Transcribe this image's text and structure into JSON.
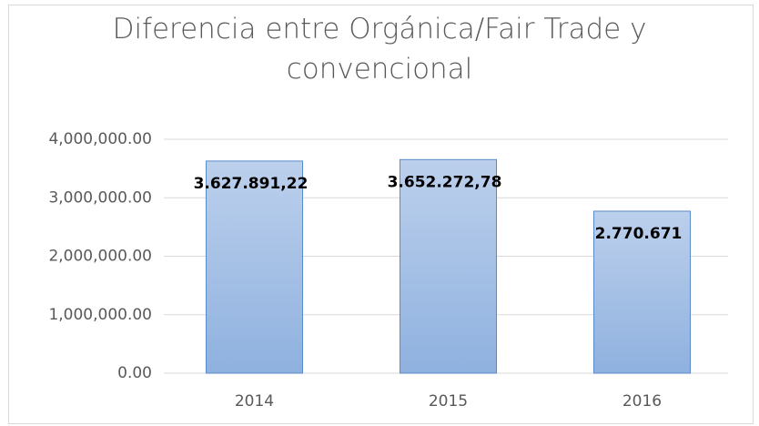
{
  "chart_data": {
    "type": "bar",
    "title": "Diferencia entre Orgánica/Fair Trade y convencional",
    "categories": [
      "2014",
      "2015",
      "2016"
    ],
    "values": [
      3627891.22,
      3652272.78,
      2770671
    ],
    "value_labels": [
      "3.627.891,22",
      "3.652.272,78",
      "2.770.671"
    ],
    "color": "#9dbbe4",
    "ylim": [
      0,
      4000000
    ],
    "yticks": [
      {
        "value": 0,
        "label": "0.00"
      },
      {
        "value": 1000000,
        "label": "1,000,000.00"
      },
      {
        "value": 2000000,
        "label": "2,000,000.00"
      },
      {
        "value": 3000000,
        "label": "3,000,000.00"
      },
      {
        "value": 4000000,
        "label": "4,000,000.00"
      }
    ],
    "grid": true
  }
}
